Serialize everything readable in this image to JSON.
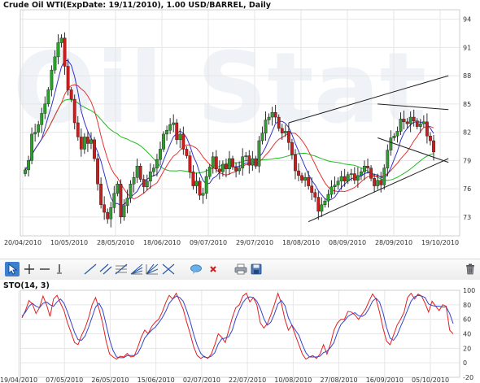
{
  "main_chart": {
    "title": "Crude Oil WTI(ExpDate: 19/11/2010), 1.00 USD/BARREL, Daily",
    "watermark_text": "Oil Stat",
    "colors": {
      "up": "#2e9e2e",
      "down": "#c81e1e",
      "ma_fast": "#3333cc",
      "ma_mid": "#e83232",
      "ma_slow": "#22bb22",
      "channel": "#222222",
      "grid": "#e6e6e6"
    }
  },
  "sto_chart": {
    "title": "STO(14, 3)",
    "colors": {
      "k": "#e02020",
      "d": "#3344cc"
    }
  },
  "toolbar": {
    "tools": [
      "cursor-icon",
      "crosshair-icon",
      "horizontal-line-icon",
      "vertical-line-icon",
      "trend-line-icon",
      "parallel-lines-icon",
      "fibonacci-retracement-icon",
      "fibonacci-fan-icon",
      "gann-fan-icon",
      "comment-icon",
      "delete-icon",
      "print-icon",
      "save-icon",
      "trash-icon"
    ]
  },
  "chart_data": [
    {
      "type": "candlestick",
      "title": "Crude Oil WTI(ExpDate: 19/11/2010), 1.00 USD/BARREL, Daily",
      "y_ticks": [
        "73",
        "76",
        "79",
        "82",
        "85",
        "88",
        "91",
        "94"
      ],
      "ylim": [
        71,
        95
      ],
      "x_ticks": [
        "20/04/2010",
        "10/05/2010",
        "28/05/2010",
        "18/06/2010",
        "09/07/2010",
        "29/07/2010",
        "18/08/2010",
        "08/09/2010",
        "28/09/2010",
        "19/10/2010"
      ],
      "closes": [
        78,
        79,
        81.8,
        82,
        82.8,
        84,
        85,
        86.5,
        88.6,
        90,
        91.5,
        92,
        89,
        86.5,
        85.5,
        83,
        81.5,
        80.2,
        81.5,
        80.8,
        81.2,
        79.2,
        76.5,
        74.3,
        73.5,
        72.8,
        74,
        75.5,
        76.5,
        73,
        74.2,
        75,
        76.5,
        77.2,
        78.4,
        77,
        76.2,
        76.8,
        77.8,
        78.2,
        79.1,
        80.2,
        81.8,
        82.2,
        82.8,
        83,
        81.2,
        81.8,
        80.2,
        79.5,
        77.8,
        76.3,
        76.8,
        75.3,
        75.5,
        77.3,
        78.3,
        79.4,
        78.1,
        77.8,
        78.6,
        78.1,
        79.2,
        78.3,
        77.9,
        78.2,
        79.4,
        79.5,
        78.5,
        79.2,
        78.4,
        81.1,
        81.9,
        83.3,
        83.6,
        84.1,
        83.6,
        82.4,
        81.9,
        82.1,
        80.9,
        79.6,
        77.9,
        77.4,
        76.9,
        77.2,
        76.3,
        75.6,
        75.1,
        73.6,
        74.3,
        74.7,
        75.4,
        76.2,
        76.4,
        76.8,
        77.3,
        76.8,
        77.5,
        77.6,
        76.9,
        77.4,
        77.8,
        78.4,
        78.2,
        77.1,
        76.3,
        76.9,
        76.4,
        78.2,
        80.1,
        81.4,
        81.6,
        82.1,
        83.4,
        83.1,
        82.9,
        83.6,
        83.2,
        82.6,
        82.9,
        83.1,
        81.6,
        81.1,
        79.9
      ],
      "overlays": [
        "moving average (blue)",
        "moving average (red)",
        "moving average (green)"
      ],
      "annotations": [
        "upward channel lines",
        "triangle trend lines"
      ]
    },
    {
      "type": "line",
      "title": "STO(14, 3)",
      "y_ticks": [
        "-20",
        "0",
        "20",
        "40",
        "60",
        "80",
        "100"
      ],
      "ylim": [
        -20,
        100
      ],
      "x_ticks": [
        "19/04/2010",
        "07/05/2010",
        "26/05/2010",
        "15/06/2010",
        "02/07/2010",
        "22/07/2010",
        "10/08/2010",
        "27/08/2010",
        "16/09/2010",
        "05/10/2010"
      ],
      "series": [
        {
          "values": [
            62,
            72,
            86,
            81,
            68,
            76,
            92,
            80,
            64,
            88,
            93,
            82,
            72,
            55,
            42,
            28,
            25,
            38,
            48,
            62,
            80,
            90,
            74,
            55,
            30,
            12,
            8,
            5,
            9,
            8,
            13,
            8,
            9,
            21,
            35,
            45,
            40,
            50,
            56,
            60,
            70,
            83,
            93,
            88,
            96,
            85,
            74,
            56,
            40,
            22,
            10,
            6,
            9,
            6,
            12,
            25,
            40,
            35,
            28,
            45,
            62,
            76,
            80,
            92,
            96,
            84,
            90,
            80,
            55,
            48,
            54,
            66,
            80,
            96,
            82,
            60,
            45,
            52,
            38,
            25,
            12,
            5,
            8,
            10,
            6,
            12,
            25,
            12,
            26,
            45,
            55,
            60,
            60,
            71,
            70,
            66,
            60,
            67,
            74,
            85,
            95,
            88,
            70,
            48,
            30,
            25,
            38,
            52,
            60,
            70,
            90,
            96,
            88,
            95,
            92,
            82,
            70,
            85,
            78,
            72,
            80,
            78,
            45,
            40
          ]
        },
        {
          "values": [
            64,
            70,
            78,
            82,
            78,
            76,
            82,
            84,
            80,
            78,
            84,
            88,
            82,
            70,
            56,
            42,
            32,
            31,
            37,
            49,
            63,
            77,
            82,
            73,
            53,
            32,
            17,
            8,
            7,
            7,
            10,
            10,
            10,
            13,
            22,
            34,
            40,
            45,
            49,
            55,
            62,
            71,
            82,
            88,
            92,
            90,
            85,
            72,
            57,
            39,
            24,
            13,
            8,
            7,
            9,
            14,
            26,
            33,
            34,
            36,
            45,
            61,
            73,
            83,
            89,
            91,
            90,
            85,
            75,
            61,
            52,
            56,
            67,
            81,
            86,
            79,
            62,
            52,
            45,
            38,
            25,
            14,
            8,
            8,
            8,
            9,
            14,
            16,
            21,
            28,
            42,
            53,
            58,
            64,
            67,
            69,
            65,
            64,
            67,
            75,
            85,
            89,
            84,
            69,
            49,
            34,
            31,
            38,
            50,
            61,
            73,
            85,
            91,
            93,
            92,
            90,
            81,
            79,
            78,
            78,
            77,
            77,
            68,
            54
          ]
        }
      ]
    }
  ]
}
